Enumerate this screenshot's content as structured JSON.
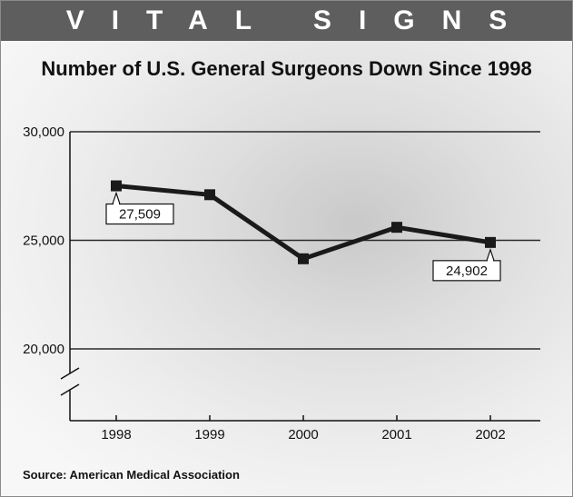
{
  "banner": "VITAL SIGNS",
  "source": "Source: American Medical Association",
  "chart_data": {
    "type": "line",
    "title": "Number of U.S. General Surgeons Down Since 1998",
    "xlabel": "",
    "ylabel": "",
    "categories": [
      "1998",
      "1999",
      "2000",
      "2001",
      "2002"
    ],
    "series": [
      {
        "values": [
          27509,
          27100,
          24150,
          25600,
          24902
        ]
      }
    ],
    "ylim": [
      20000,
      30000
    ],
    "y_ticks": [
      "30,000",
      "25,000",
      "20,000"
    ],
    "y_tick_values": [
      30000,
      25000,
      20000
    ],
    "axis_break": true,
    "grid": true,
    "data_labels": [
      {
        "index": 0,
        "text": "27,509",
        "position": "below"
      },
      {
        "index": 4,
        "text": "24,902",
        "position": "below"
      }
    ],
    "colors": {
      "line": "#1a1a1a",
      "banner": "#5e5e5e"
    }
  }
}
